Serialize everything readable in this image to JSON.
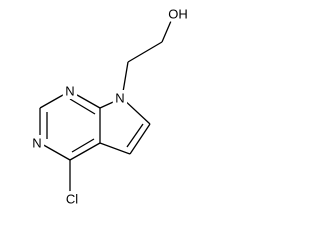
{
  "atoms": [
    "OH",
    "N",
    "N",
    "N",
    "Cl"
  ]
}
